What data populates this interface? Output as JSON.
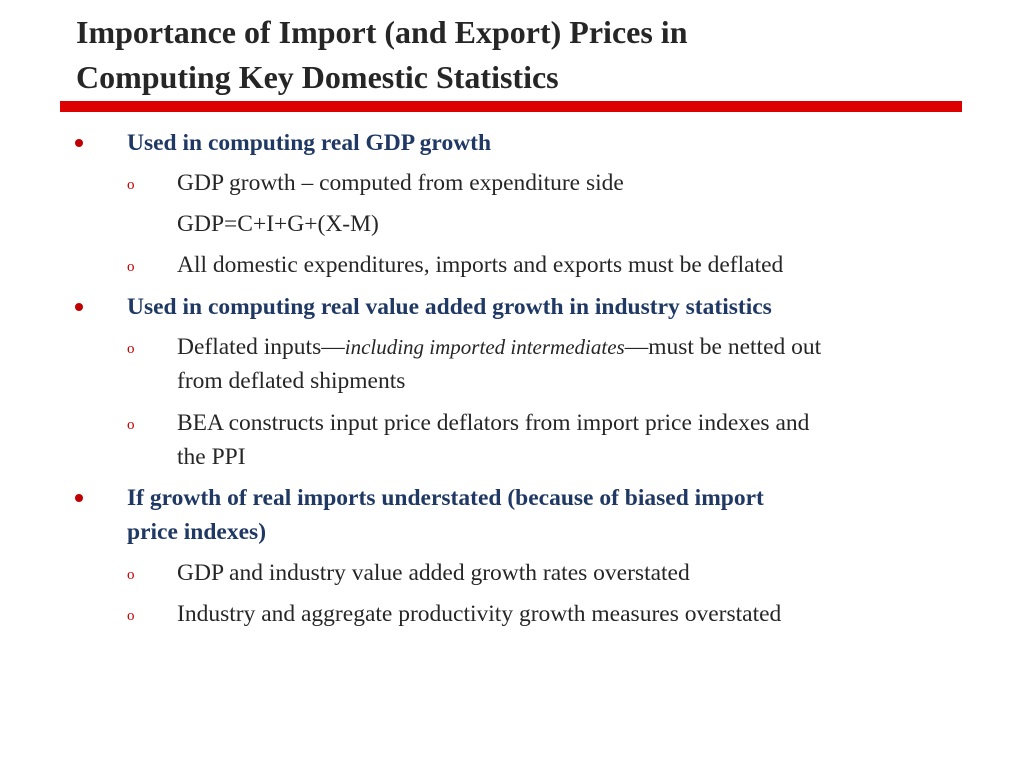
{
  "title": {
    "line1": "Importance of Import (and Export) Prices in",
    "line2": "Computing Key Domestic Statistics"
  },
  "bullets": {
    "b1": {
      "label": "Used in computing real GDP growth",
      "sub1": "GDP growth – computed from expenditure side",
      "sub1_cont": "GDP=C+I+G+(X-M)",
      "sub2": "All domestic expenditures, imports and exports must be deflated"
    },
    "b2": {
      "label": "Used in computing real value added growth in industry statistics",
      "sub1_pre": "Deflated inputs—",
      "sub1_ital": "including imported intermediates",
      "sub1_post": "—must be netted out",
      "sub1_line2": "from deflated shipments",
      "sub2_line1": "BEA constructs input price deflators from import price indexes and",
      "sub2_line2": "the PPI"
    },
    "b3": {
      "label_line1": "If growth of real imports understated (because of biased import",
      "label_line2": "price indexes)",
      "sub1": "GDP and industry value added growth rates overstated",
      "sub2": "Industry and aggregate productivity growth measures overstated"
    }
  },
  "sub_bullet_glyph": "o",
  "colors": {
    "title": "#262626",
    "rule": "#dd0000",
    "level1_text": "#1f3864",
    "bullet": "#c00000",
    "body_text": "#262626"
  }
}
